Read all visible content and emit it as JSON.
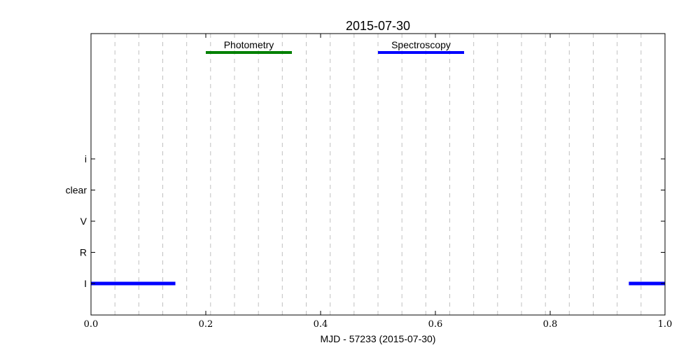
{
  "chart_data": {
    "type": "timeline",
    "title": "2015-07-30",
    "xlabel": "MJD - 57233 (2015-07-30)",
    "ylabel": "",
    "xlim": [
      0.0,
      1.0
    ],
    "x_ticks": [
      0.0,
      0.2,
      0.4,
      0.6,
      0.8,
      1.0
    ],
    "x_tick_labels": [
      "0.0",
      "0.2",
      "0.4",
      "0.6",
      "0.8",
      "1.0"
    ],
    "y_categories": [
      "i",
      "clear",
      "V",
      "R",
      "I"
    ],
    "grid_vertical_dashed": [
      0.0417,
      0.0833,
      0.125,
      0.1667,
      0.2083,
      0.25,
      0.2917,
      0.3333,
      0.375,
      0.4167,
      0.4583,
      0.5,
      0.5417,
      0.5833,
      0.625,
      0.6667,
      0.7083,
      0.75,
      0.7917,
      0.8333,
      0.875,
      0.9167,
      0.9583
    ],
    "bands": [
      {
        "label": "Photometry",
        "start": 0.2,
        "end": 0.35,
        "color": "#008000"
      },
      {
        "label": "Spectroscopy",
        "start": 0.5,
        "end": 0.65,
        "color": "#0000ff"
      }
    ],
    "segments": [
      {
        "category": "I",
        "start": 0.0,
        "end": 0.147,
        "color": "#0000ff"
      },
      {
        "category": "I",
        "start": 0.937,
        "end": 1.0,
        "color": "#0000ff"
      }
    ]
  }
}
